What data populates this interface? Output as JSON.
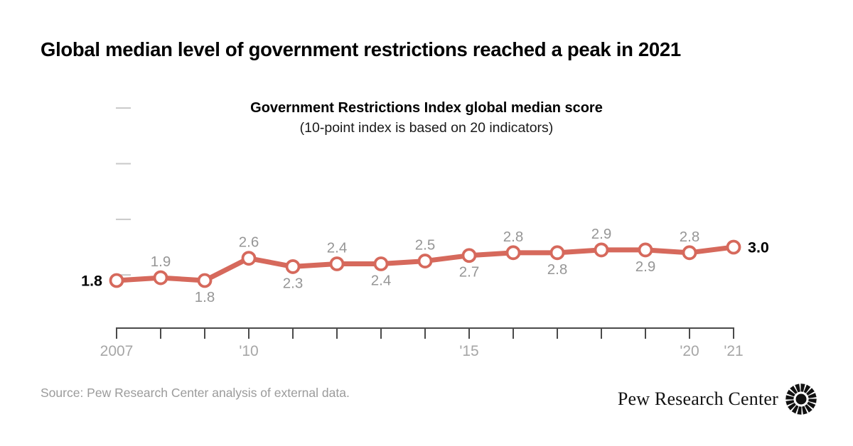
{
  "title": "Global median level of government restrictions reached a peak in 2021",
  "source": "Source: Pew Research Center analysis of external data.",
  "branding": {
    "text": "Pew Research Center",
    "icon": "sunburst-icon"
  },
  "colors": {
    "line": "#d6695c",
    "value_label": "#969696",
    "emphasis_label": "#000000",
    "axis_label": "#a6a6a6",
    "axis_line": "#4a4a4a",
    "y_dash": "#c8c8c8",
    "background": "#ffffff",
    "source_gray": "#9b9b9b"
  },
  "chart_data": {
    "type": "line",
    "title": "Government Restrictions Index global median score",
    "note": "(10-point index is based on 20 indicators)",
    "series_name": "Government Restrictions Index global median score",
    "x": [
      2007,
      2008,
      2009,
      2010,
      2011,
      2012,
      2013,
      2014,
      2015,
      2016,
      2017,
      2018,
      2019,
      2020,
      2021
    ],
    "values": [
      1.8,
      1.9,
      1.8,
      2.6,
      2.3,
      2.4,
      2.4,
      2.5,
      2.7,
      2.8,
      2.8,
      2.9,
      2.9,
      2.8,
      3.0
    ],
    "label_positions": [
      "left",
      "above",
      "below",
      "above",
      "below",
      "above",
      "below",
      "above",
      "below",
      "above",
      "below",
      "above",
      "below",
      "above",
      "right"
    ],
    "emphasized_years": [
      2007,
      2021
    ],
    "x_tick_labels": {
      "2007": "2007",
      "2010": "'10",
      "2015": "'15",
      "2020": "'20",
      "2021": "'21"
    },
    "y_axis": {
      "range": [
        0,
        10
      ],
      "unlabeled_tick_values": [
        2,
        4,
        6,
        8
      ]
    },
    "grid": false,
    "legend": "none"
  }
}
